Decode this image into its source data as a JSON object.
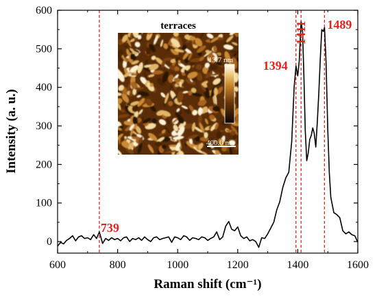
{
  "chart_data": {
    "type": "line",
    "xlabel": "Raman shift (cm⁻¹)",
    "ylabel": "Intensity (a. u.)",
    "xlim": [
      600,
      1600
    ],
    "ylim": [
      -30,
      600
    ],
    "xticks": [
      600,
      800,
      1000,
      1200,
      1400,
      1600
    ],
    "yticks": [
      0,
      100,
      200,
      300,
      400,
      500,
      600
    ],
    "grid": false,
    "series": [
      {
        "x": [
          600,
          610,
          620,
          630,
          640,
          650,
          660,
          670,
          680,
          690,
          700,
          710,
          720,
          730,
          739,
          750,
          760,
          770,
          780,
          790,
          800,
          810,
          820,
          830,
          840,
          850,
          860,
          870,
          880,
          890,
          900,
          910,
          920,
          930,
          940,
          950,
          960,
          970,
          980,
          990,
          1000,
          1010,
          1020,
          1030,
          1040,
          1050,
          1060,
          1070,
          1080,
          1090,
          1100,
          1110,
          1120,
          1130,
          1140,
          1150,
          1160,
          1170,
          1180,
          1190,
          1200,
          1210,
          1220,
          1230,
          1240,
          1250,
          1260,
          1270,
          1280,
          1290,
          1300,
          1310,
          1320,
          1330,
          1340,
          1350,
          1360,
          1370,
          1380,
          1388,
          1394,
          1400,
          1405,
          1411,
          1416,
          1420,
          1425,
          1430,
          1435,
          1440,
          1445,
          1450,
          1455,
          1460,
          1465,
          1470,
          1475,
          1480,
          1485,
          1489,
          1494,
          1500,
          1505,
          1510,
          1520,
          1530,
          1540,
          1550,
          1560,
          1570,
          1580,
          1590,
          1600
        ],
        "values": [
          -12,
          -2,
          -6,
          3,
          8,
          15,
          2,
          12,
          15,
          8,
          10,
          5,
          18,
          8,
          25,
          -5,
          8,
          3,
          10,
          5,
          8,
          2,
          10,
          12,
          0,
          8,
          5,
          10,
          3,
          12,
          5,
          0,
          10,
          12,
          5,
          8,
          10,
          12,
          -2,
          12,
          10,
          5,
          15,
          12,
          3,
          10,
          8,
          5,
          12,
          10,
          3,
          8,
          12,
          25,
          5,
          12,
          40,
          52,
          32,
          28,
          38,
          15,
          8,
          12,
          2,
          5,
          0,
          -15,
          10,
          8,
          20,
          35,
          50,
          82,
          103,
          140,
          165,
          180,
          260,
          400,
          455,
          430,
          470,
          570,
          545,
          440,
          290,
          210,
          230,
          265,
          275,
          295,
          280,
          245,
          310,
          385,
          475,
          550,
          545,
          555,
          470,
          290,
          180,
          115,
          75,
          70,
          62,
          28,
          20,
          25,
          18,
          15,
          -2
        ]
      }
    ],
    "peak_lines": [
      739,
      1394,
      1411,
      1489
    ],
    "peak_labels": [
      "739",
      "1394",
      "1411",
      "1489"
    ],
    "inset": {
      "title": "terraces",
      "colorbar_max_label": "13.7 nm",
      "scalebar_label": "400.0 nm"
    },
    "colors": {
      "line": "#000000",
      "peak": "#e8211b",
      "axis": "#000000"
    }
  }
}
